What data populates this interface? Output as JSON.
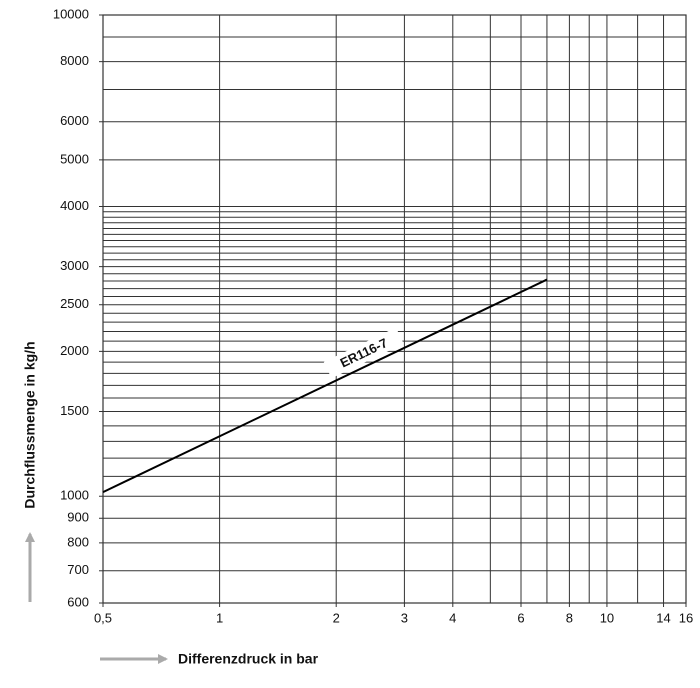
{
  "chart_data": {
    "type": "line",
    "log_x": true,
    "log_y": true,
    "grid": true,
    "xlabel": "Differenzdruck in bar",
    "ylabel": "Durchflussmenge in kg/h",
    "xlim": [
      0.5,
      16
    ],
    "ylim": [
      600,
      10000
    ],
    "xticks": [
      {
        "value": 0.5,
        "label": "0,5"
      },
      1,
      2,
      3,
      4,
      6,
      8,
      10,
      14,
      16
    ],
    "xgrid": [
      1,
      2,
      3,
      4,
      5,
      6,
      7,
      8,
      9,
      10,
      12,
      14
    ],
    "yticks": [
      600,
      700,
      800,
      900,
      1000,
      1500,
      2000,
      2500,
      3000,
      4000,
      5000,
      6000,
      8000,
      10000
    ],
    "ygrid": [
      700,
      800,
      900,
      1000,
      1100,
      1200,
      1300,
      1400,
      1500,
      1600,
      1700,
      1800,
      1900,
      2000,
      2100,
      2200,
      2300,
      2400,
      2500,
      2600,
      2700,
      2800,
      2900,
      3000,
      3100,
      3200,
      3300,
      3400,
      3500,
      3600,
      3700,
      3800,
      3900,
      4000,
      5000,
      6000,
      7000,
      8000,
      9000
    ],
    "x": [
      0.5,
      7
    ],
    "series": [
      {
        "name": "ER116-7",
        "color": "#000000",
        "values": [
          1020,
          2820
        ]
      }
    ]
  }
}
